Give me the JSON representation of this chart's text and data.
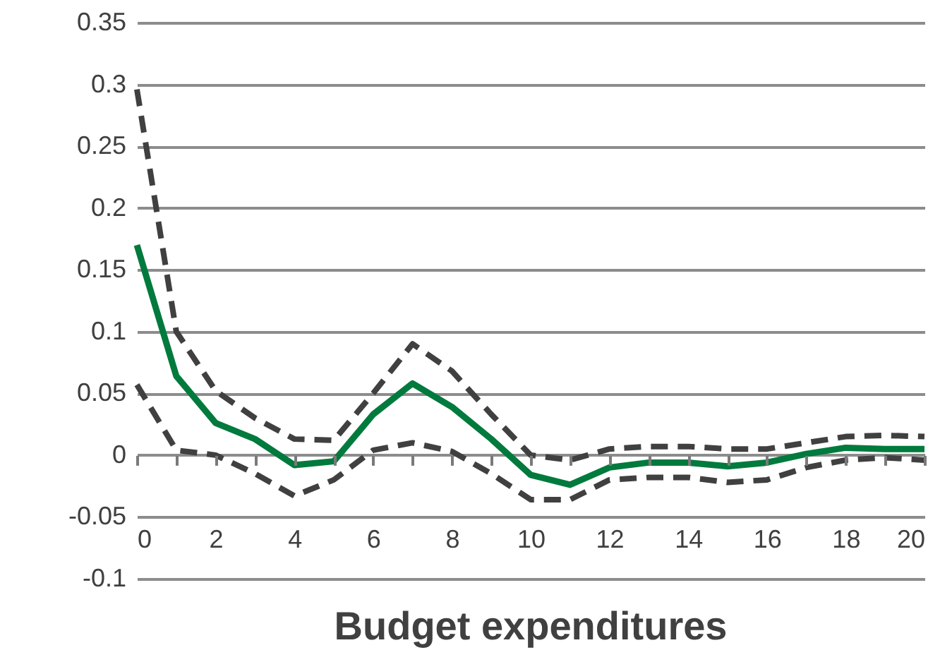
{
  "chart_data": {
    "type": "line",
    "xlabel": "Budget expenditures",
    "x": [
      0,
      1,
      2,
      3,
      4,
      5,
      6,
      7,
      8,
      9,
      10,
      11,
      12,
      13,
      14,
      15,
      16,
      17,
      18,
      19,
      20
    ],
    "series": [
      {
        "color": "#404040",
        "line_style": "dashed",
        "values": [
          0.296,
          0.1,
          0.052,
          0.03,
          0.013,
          0.012,
          0.05,
          0.09,
          0.068,
          0.033,
          0.0,
          -0.004,
          0.005,
          0.007,
          0.007,
          0.005,
          0.005,
          0.01,
          0.015,
          0.016,
          0.015
        ]
      },
      {
        "color": "#404040",
        "line_style": "dashed",
        "values": [
          0.057,
          0.004,
          0.0,
          -0.015,
          -0.033,
          -0.02,
          0.004,
          0.01,
          0.003,
          -0.015,
          -0.036,
          -0.036,
          -0.02,
          -0.018,
          -0.018,
          -0.022,
          -0.02,
          -0.01,
          -0.004,
          -0.002,
          -0.004
        ]
      },
      {
        "color": "#007a3d",
        "line_style": "solid",
        "values": [
          0.17,
          0.064,
          0.026,
          0.013,
          -0.008,
          -0.005,
          0.033,
          0.058,
          0.039,
          0.013,
          -0.016,
          -0.024,
          -0.01,
          -0.006,
          -0.006,
          -0.009,
          -0.006,
          0.001,
          0.006,
          0.005,
          0.005
        ]
      }
    ],
    "xlim": [
      0,
      20
    ],
    "xticks": [
      0,
      {
        "value": 1,
        "label": null
      },
      2,
      {
        "value": 3,
        "label": null
      },
      4,
      {
        "value": 5,
        "label": null
      },
      6,
      {
        "value": 7,
        "label": null
      },
      8,
      {
        "value": 9,
        "label": null
      },
      10,
      {
        "value": 11,
        "label": null
      },
      12,
      {
        "value": 13,
        "label": null
      },
      14,
      {
        "value": 15,
        "label": null
      },
      16,
      {
        "value": 17,
        "label": null
      },
      18,
      {
        "value": 19,
        "label": null
      },
      20
    ],
    "ylim": [
      -0.1,
      0.35
    ],
    "yticks": [
      -0.1,
      -0.05,
      0,
      0.05,
      0.1,
      0.15,
      0.2,
      0.25,
      0.3,
      0.35
    ],
    "grid": "y",
    "marker": "none"
  }
}
